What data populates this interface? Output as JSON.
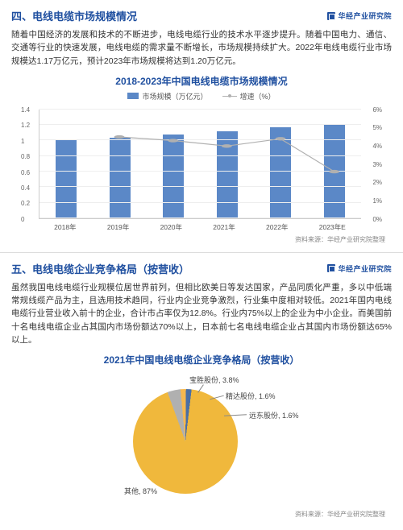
{
  "brand": {
    "name": "华经产业研究院"
  },
  "section1": {
    "number": "四、",
    "title": "电线电缆市场规模情况",
    "body": "随着中国经济的发展和技术的不断进步，电线电缆行业的技术水平逐步提升。随着中国电力、通信、交通等行业的快速发展，电线电缆的需求量不断增长，市场规模持续扩大。2022年电线电缆行业市场规模达1.17万亿元，预计2023年市场规模将达到1.20万亿元。",
    "chart": {
      "title": "2018-2023年中国电线电缆市场规模情况",
      "series_bar_label": "市场规模（万亿元）",
      "series_line_label": "增速（%）",
      "categories": [
        "2018年",
        "2019年",
        "2020年",
        "2021年",
        "2022年",
        "2023年E"
      ],
      "bar_values": [
        1.0,
        1.04,
        1.08,
        1.12,
        1.17,
        1.2
      ],
      "line_values": [
        null,
        4.5,
        4.3,
        4.0,
        4.4,
        2.6
      ],
      "y_left": {
        "min": 0,
        "max": 1.4,
        "step": 0.2,
        "labels": [
          "0",
          "0.2",
          "0.4",
          "0.6",
          "0.8",
          "1",
          "1.2",
          "1.4"
        ]
      },
      "y_right": {
        "min": 0,
        "max": 6,
        "step": 1,
        "labels": [
          "0%",
          "1%",
          "2%",
          "3%",
          "4%",
          "5%",
          "6%"
        ]
      },
      "bar_color": "#5b88c7",
      "line_color": "#b0b0b0",
      "grid_color": "#eeeeee",
      "bg_color": "#ffffff"
    },
    "source": "资料来源：华经产业研究院整理"
  },
  "section2": {
    "number": "五、",
    "title": "电线电缆企业竞争格局（按营收）",
    "body": "虽然我国电线电缆行业规模位居世界前列，但相比欧美日等发达国家，产品同质化严重，多以中低端常规线缆产品为主，且选用技术趋同，行业内企业竞争激烈，行业集中度相对较低。2021年国内电线电缆行业营业收入前十的企业，合计市占率仅为12.8%。行业内75%以上的企业为中小企业。而美国前十名电线电缆企业占其国内市场份额达70%以上，日本前七名电线电缆企业占其国内市场份额达65%以上。",
    "chart": {
      "title": "2021年中国电线电缆企业竞争格局（按营收）",
      "type": "pie",
      "slices": [
        {
          "label": "宝胜股份",
          "value": 3.8,
          "color": "#b0b0b0"
        },
        {
          "label": "精达股份",
          "value": 1.6,
          "color": "#f6b84f"
        },
        {
          "label": "远东股份",
          "value": 1.6,
          "color": "#4a6fa5"
        },
        {
          "label": "其他",
          "value": 87.0,
          "color": "#f0b83c"
        }
      ],
      "labels": {
        "baosheng": "宝胜股份, 3.8%",
        "jingda": "精达股份, 1.6%",
        "yuandong": "远东股份, 1.6%",
        "other": "其他, 87%"
      }
    },
    "source": "资料来源：华经产业研究院整理"
  }
}
